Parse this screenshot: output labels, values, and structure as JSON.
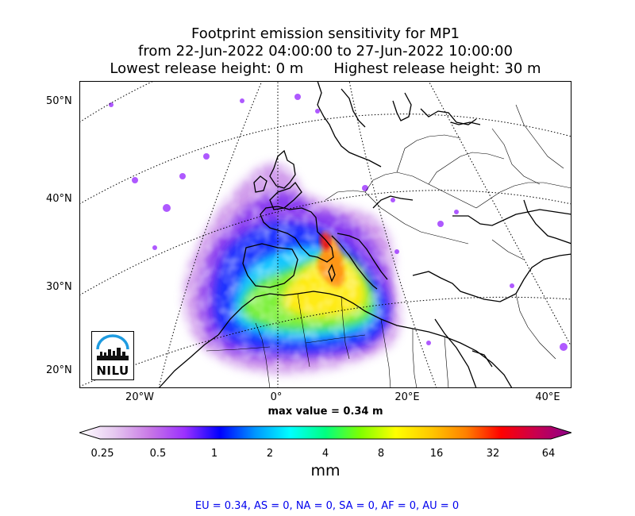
{
  "title": {
    "line1": "Footprint emission sensitivity for MP1",
    "line2": "from 22-Jun-2022 04:00:00 to 27-Jun-2022 10:00:00",
    "lowest": "Lowest release height: 0 m",
    "highest": "Highest release height: 30 m"
  },
  "map": {
    "lat_labels": [
      "50°N",
      "40°N",
      "30°N",
      "20°N"
    ],
    "lon_labels": [
      "20°W",
      "0°",
      "20°E",
      "40°E"
    ],
    "max_value": "max value = 0.34 m",
    "logo_text": "NILU"
  },
  "colorbar": {
    "ticks": [
      "0.25",
      "0.5",
      "1",
      "2",
      "4",
      "8",
      "16",
      "32",
      "64"
    ],
    "unit": "mm",
    "colors": [
      "#ffffff",
      "#e6c8f0",
      "#c878e6",
      "#9b30ff",
      "#0000ff",
      "#0096ff",
      "#00ffff",
      "#00ff80",
      "#80ff00",
      "#ffff00",
      "#ffc800",
      "#ff8000",
      "#ff0000",
      "#c80050",
      "#8b008b"
    ]
  },
  "regions": "EU = 0.34,  AS = 0,  NA = 0,  SA = 0,  AF = 0,  AU = 0"
}
